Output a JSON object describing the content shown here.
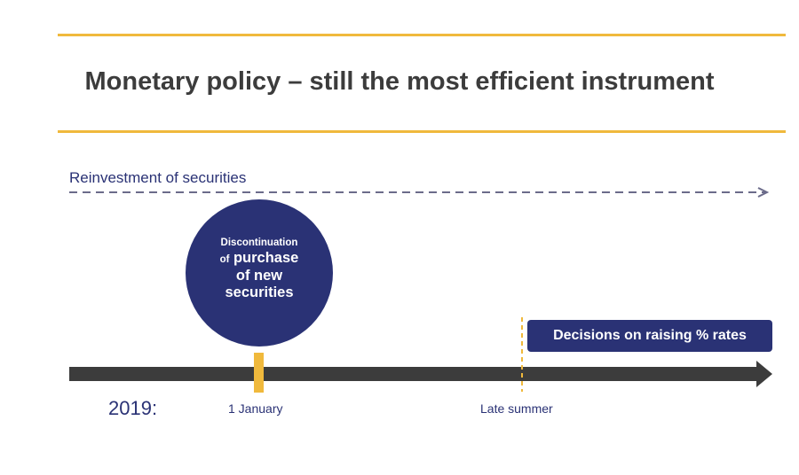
{
  "title": "Monetary policy – still the most efficient instrument",
  "reinvestment_label": "Reinvestment of securities",
  "circle": {
    "line1": "Discontinuation",
    "line2_small": "of",
    "line2_big": "purchase",
    "line3": "of new",
    "line4": "securities"
  },
  "decision_box": "Decisions on raising % rates",
  "year_label": "2019:",
  "timeline_labels": {
    "jan": "1 January",
    "summer": "Late summer"
  },
  "colors": {
    "accent_yellow": "#f0b93c",
    "navy": "#2a3275",
    "timeline_gray": "#3c3c3c",
    "dashed": "#6b6b8a"
  }
}
